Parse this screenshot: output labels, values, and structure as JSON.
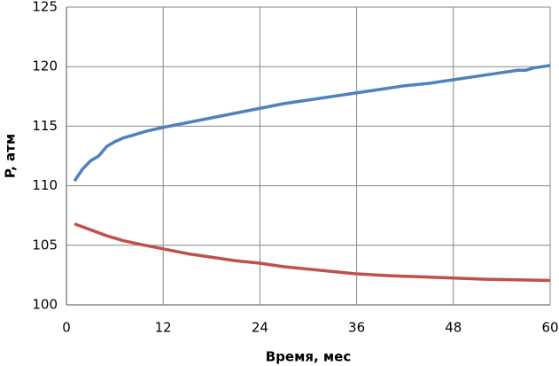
{
  "chart_data": {
    "type": "line",
    "xlabel": "Время, мес",
    "ylabel": "P, атм",
    "xlim": [
      0,
      60
    ],
    "xticks": [
      0,
      12,
      24,
      36,
      48,
      60
    ],
    "ylim": [
      100,
      125
    ],
    "yticks": [
      100,
      105,
      110,
      115,
      120,
      125
    ],
    "grid": true,
    "series": [
      {
        "color": "#4f81bd",
        "x": [
          1,
          2,
          3,
          4,
          5,
          6,
          7,
          8,
          10,
          12,
          15,
          18,
          21,
          24,
          27,
          30,
          33,
          36,
          39,
          42,
          45,
          48,
          51,
          54,
          56,
          57,
          58,
          60
        ],
        "values": [
          110.4,
          111.4,
          112.1,
          112.5,
          113.3,
          113.7,
          114.0,
          114.2,
          114.6,
          114.9,
          115.3,
          115.7,
          116.1,
          116.5,
          116.9,
          117.2,
          117.5,
          117.8,
          118.1,
          118.4,
          118.6,
          118.9,
          119.2,
          119.5,
          119.7,
          119.7,
          119.9,
          120.1
        ]
      },
      {
        "color": "#c0504d",
        "x": [
          1,
          3,
          5,
          7,
          9,
          12,
          15,
          18,
          21,
          24,
          27,
          30,
          33,
          36,
          40,
          44,
          48,
          52,
          56,
          60
        ],
        "values": [
          106.8,
          106.3,
          105.8,
          105.4,
          105.1,
          104.7,
          104.3,
          104.0,
          103.7,
          103.5,
          103.2,
          103.0,
          102.8,
          102.6,
          102.45,
          102.35,
          102.25,
          102.15,
          102.1,
          102.05
        ]
      }
    ]
  }
}
